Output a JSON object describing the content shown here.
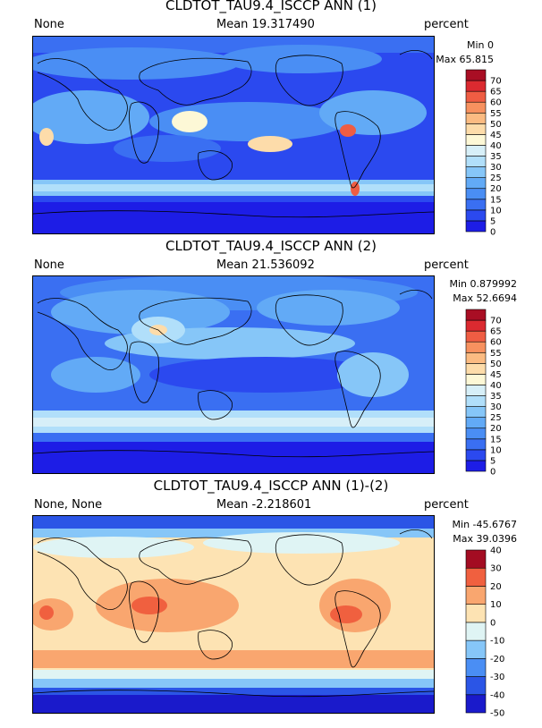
{
  "panels": [
    {
      "title": "CLDTOT_TAU9.4_ISCCP ANN (1)",
      "left_label": "None",
      "mean_label": "Mean 19.317490",
      "units": "percent",
      "min_label": "Min 0",
      "max_label": "Max 65.815",
      "levels": [
        "0",
        "5",
        "10",
        "15",
        "20",
        "25",
        "30",
        "35",
        "40",
        "45",
        "50",
        "55",
        "60",
        "65",
        "70"
      ],
      "colors": [
        "#1d1de6",
        "#2b49ef",
        "#3a6ff2",
        "#4a8ef4",
        "#62aaf6",
        "#86c6f8",
        "#b1dffa",
        "#d7eff8",
        "#fdf8d6",
        "#fddcaa",
        "#fbbb82",
        "#f7915f",
        "#ef5d43",
        "#db2a30",
        "#a90e24"
      ]
    },
    {
      "title": "CLDTOT_TAU9.4_ISCCP ANN (2)",
      "left_label": "None",
      "mean_label": "Mean 21.536092",
      "units": "percent",
      "min_label": "Min 0.879992",
      "max_label": "Max 52.6694",
      "levels": [
        "0",
        "5",
        "10",
        "15",
        "20",
        "25",
        "30",
        "35",
        "40",
        "45",
        "50",
        "55",
        "60",
        "65",
        "70"
      ],
      "colors": [
        "#1d1de6",
        "#2b49ef",
        "#3a6ff2",
        "#4a8ef4",
        "#62aaf6",
        "#86c6f8",
        "#b1dffa",
        "#d7eff8",
        "#fdf8d6",
        "#fddcaa",
        "#fbbb82",
        "#f7915f",
        "#ef5d43",
        "#db2a30",
        "#a90e24"
      ]
    },
    {
      "title": "CLDTOT_TAU9.4_ISCCP ANN (1)-(2)",
      "left_label": "None, None",
      "mean_label": "Mean -2.218601",
      "units": "percent",
      "min_label": "Min -45.6767",
      "max_label": "Max 39.0396",
      "levels": [
        "-50",
        "-40",
        "-30",
        "-20",
        "-10",
        "0",
        "10",
        "20",
        "30",
        "40"
      ],
      "colors": [
        "#1a1acb",
        "#2b55e6",
        "#4a8ef4",
        "#86c6f8",
        "#dff4f4",
        "#fde3b3",
        "#f9a66f",
        "#f0603f",
        "#a30c22"
      ]
    }
  ]
}
